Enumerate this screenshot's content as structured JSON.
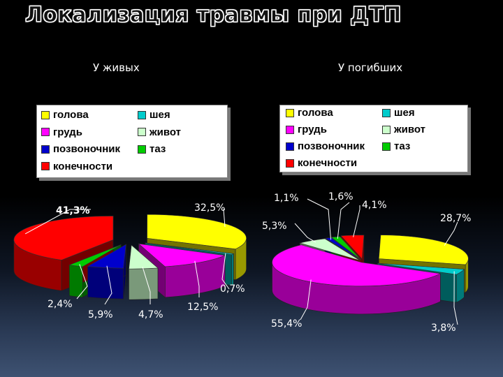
{
  "title": "Локализация травмы при ДТП",
  "subtitles": {
    "left": "У живых",
    "right": "У погибших"
  },
  "legend": [
    {
      "label": "голова",
      "color": "#ffff00"
    },
    {
      "label": "шея",
      "color": "#00cccc"
    },
    {
      "label": "грудь",
      "color": "#ff00ff"
    },
    {
      "label": "живот",
      "color": "#ccffcc"
    },
    {
      "label": "позвоночник",
      "color": "#0000cc"
    },
    {
      "label": "таз",
      "color": "#00cc00"
    },
    {
      "label": "конечности",
      "color": "#ff0000"
    }
  ],
  "chart_data": [
    {
      "type": "pie",
      "title": "У живых",
      "categories": [
        "голова",
        "шея",
        "грудь",
        "живот",
        "позвоночник",
        "таз",
        "конечности"
      ],
      "values": [
        32.5,
        0.7,
        12.5,
        4.7,
        5.9,
        2.4,
        41.3
      ],
      "labels": [
        "32,5%",
        "0,7%",
        "12,5%",
        "4,7%",
        "5,9%",
        "2,4%",
        "41,3%"
      ],
      "style": "3d-exploded"
    },
    {
      "type": "pie",
      "title": "У погибших",
      "categories": [
        "голова",
        "шея",
        "грудь",
        "живот",
        "позвоночник",
        "таз",
        "конечности"
      ],
      "values": [
        28.7,
        3.8,
        55.4,
        5.3,
        1.1,
        1.6,
        4.1
      ],
      "labels": [
        "28,7%",
        "3,8%",
        "55,4%",
        "5,3%",
        "1,1%",
        "1,6%",
        "4,1%"
      ],
      "style": "3d"
    }
  ]
}
